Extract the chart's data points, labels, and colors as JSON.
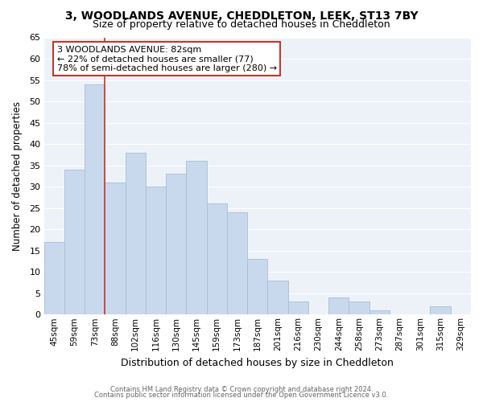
{
  "title": "3, WOODLANDS AVENUE, CHEDDLETON, LEEK, ST13 7BY",
  "subtitle": "Size of property relative to detached houses in Cheddleton",
  "xlabel": "Distribution of detached houses by size in Cheddleton",
  "ylabel": "Number of detached properties",
  "categories": [
    "45sqm",
    "59sqm",
    "73sqm",
    "88sqm",
    "102sqm",
    "116sqm",
    "130sqm",
    "145sqm",
    "159sqm",
    "173sqm",
    "187sqm",
    "201sqm",
    "216sqm",
    "230sqm",
    "244sqm",
    "258sqm",
    "273sqm",
    "287sqm",
    "301sqm",
    "315sqm",
    "329sqm"
  ],
  "values": [
    17,
    34,
    54,
    31,
    38,
    30,
    33,
    36,
    26,
    24,
    13,
    8,
    3,
    0,
    4,
    3,
    1,
    0,
    0,
    2,
    0
  ],
  "bar_color": "#c9d9ed",
  "bar_edge_color": "#aabdd6",
  "vline_x_index": 2,
  "vline_color": "#c0392b",
  "ylim": [
    0,
    65
  ],
  "yticks": [
    0,
    5,
    10,
    15,
    20,
    25,
    30,
    35,
    40,
    45,
    50,
    55,
    60,
    65
  ],
  "annotation_title": "3 WOODLANDS AVENUE: 82sqm",
  "annotation_line1": "← 22% of detached houses are smaller (77)",
  "annotation_line2": "78% of semi-detached houses are larger (280) →",
  "annotation_box_color": "#ffffff",
  "annotation_box_edge": "#c0392b",
  "footer_line1": "Contains HM Land Registry data © Crown copyright and database right 2024.",
  "footer_line2": "Contains public sector information licensed under the Open Government Licence v3.0.",
  "background_color": "#ffffff",
  "plot_bg_color": "#edf2f9",
  "grid_color": "#ffffff",
  "title_fontsize": 10,
  "subtitle_fontsize": 9,
  "annotation_fontsize": 8
}
